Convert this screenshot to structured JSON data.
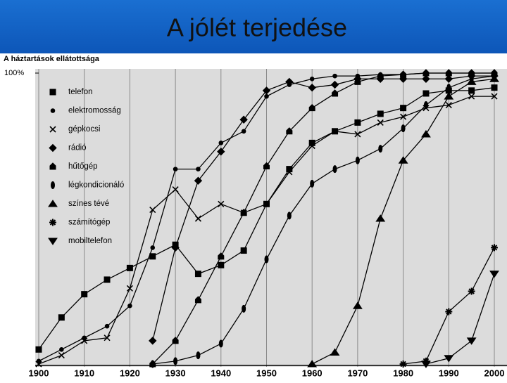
{
  "slide_title": "A jólét terjedése",
  "chart_data": {
    "type": "line",
    "title": "A háztartások ellátottsága",
    "x": [
      1900,
      1905,
      1910,
      1915,
      1920,
      1925,
      1930,
      1935,
      1940,
      1945,
      1950,
      1955,
      1960,
      1965,
      1970,
      1975,
      1980,
      1985,
      1990,
      1995,
      2000
    ],
    "xlim": [
      1900,
      2000
    ],
    "xticks": [
      1900,
      1910,
      1920,
      1930,
      1940,
      1950,
      1960,
      1970,
      1980,
      1990,
      2000
    ],
    "ylim": [
      0,
      100
    ],
    "yticks": [
      {
        "value": 100,
        "label": "100%"
      }
    ],
    "grid": true,
    "series": [
      {
        "name": "telefon",
        "marker": "square",
        "color": "#000000",
        "values": [
          5,
          16,
          24,
          29,
          33,
          37,
          41,
          31,
          34,
          39,
          55,
          67,
          76,
          80,
          83,
          86,
          88,
          93,
          94,
          94,
          95
        ]
      },
      {
        "name": "elektromosság",
        "marker": "circle",
        "color": "#000000",
        "values": [
          1,
          5,
          9,
          13,
          20,
          40,
          67,
          67,
          76,
          80,
          92,
          96,
          98,
          99,
          99,
          99.5,
          99.5,
          100,
          100,
          100,
          100
        ]
      },
      {
        "name": "gépkocsi",
        "marker": "x",
        "color": "#000000",
        "values": [
          0,
          3,
          8,
          9,
          26,
          53,
          60,
          50,
          55,
          52,
          55,
          66,
          75,
          80,
          79,
          83,
          85,
          88,
          89,
          92,
          92
        ]
      },
      {
        "name": "rádió",
        "marker": "diamond",
        "color": "#000000",
        "values": [
          null,
          null,
          null,
          null,
          null,
          8,
          40,
          63,
          73,
          84,
          94,
          97,
          95,
          96,
          98,
          98,
          98,
          98,
          98,
          99,
          99
        ]
      },
      {
        "name": "hűtőgép",
        "marker": "house",
        "color": "#000000",
        "values": [
          null,
          null,
          null,
          null,
          null,
          0,
          8,
          22,
          37,
          52,
          68,
          80,
          88,
          93,
          97,
          99,
          99.5,
          100,
          100,
          100,
          100
        ]
      },
      {
        "name": "légkondicionáló",
        "marker": "ellipse",
        "color": "#000000",
        "values": [
          null,
          null,
          null,
          null,
          null,
          0,
          1,
          3,
          7,
          19,
          36,
          51,
          62,
          67,
          70,
          74,
          81,
          89,
          95,
          98,
          99
        ]
      },
      {
        "name": "színes tévé",
        "marker": "triangle-up",
        "color": "#000000",
        "values": [
          null,
          null,
          null,
          null,
          null,
          null,
          null,
          null,
          null,
          null,
          null,
          null,
          0,
          4,
          20,
          50,
          70,
          79,
          92,
          97,
          98
        ]
      },
      {
        "name": "számítógép",
        "marker": "star",
        "color": "#000000",
        "values": [
          null,
          null,
          null,
          null,
          null,
          null,
          null,
          null,
          null,
          null,
          null,
          null,
          null,
          null,
          null,
          null,
          0,
          1,
          18,
          25,
          40
        ]
      },
      {
        "name": "mobiltelefon",
        "marker": "triangle-down",
        "color": "#000000",
        "values": [
          null,
          null,
          null,
          null,
          null,
          null,
          null,
          null,
          null,
          null,
          null,
          null,
          null,
          null,
          null,
          null,
          null,
          0,
          2,
          8,
          31
        ]
      }
    ]
  }
}
